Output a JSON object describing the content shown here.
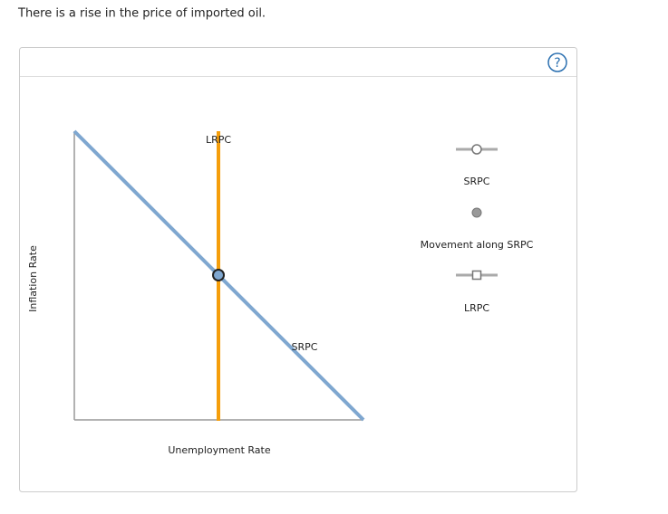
{
  "question": "There is a rise in the price of imported oil.",
  "help": "?",
  "graph": {
    "y_axis_label": "Inflation Rate",
    "x_axis_label": "Unemployment Rate",
    "lrpc_label": "LRPC",
    "srpc_label": "SRPC"
  },
  "palette": [
    "SRPC",
    "Movement along SRPC",
    "LRPC"
  ]
}
